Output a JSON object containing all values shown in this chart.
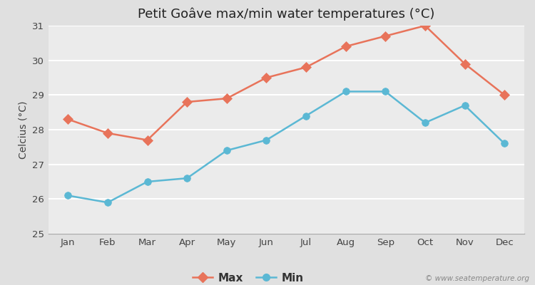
{
  "title": "Petit Goâve max/min water temperatures (°C)",
  "ylabel": "Celcius (°C)",
  "months": [
    "Jan",
    "Feb",
    "Mar",
    "Apr",
    "May",
    "Jun",
    "Jul",
    "Aug",
    "Sep",
    "Oct",
    "Nov",
    "Dec"
  ],
  "max_values": [
    28.3,
    27.9,
    27.7,
    28.8,
    28.9,
    29.5,
    29.8,
    30.4,
    30.7,
    31.0,
    29.9,
    29.0
  ],
  "min_values": [
    26.1,
    25.9,
    26.5,
    26.6,
    27.4,
    27.7,
    28.4,
    29.1,
    29.1,
    28.2,
    28.7,
    27.6
  ],
  "max_color": "#E8735A",
  "min_color": "#5BB8D4",
  "bg_color": "#E0E0E0",
  "plot_bg_color": "#EBEBEB",
  "grid_color": "#FFFFFF",
  "ylim": [
    25,
    31
  ],
  "yticks": [
    25,
    26,
    27,
    28,
    29,
    30,
    31
  ],
  "watermark": "© www.seatemperature.org",
  "legend_labels": [
    "Max",
    "Min"
  ],
  "marker_size_max": 7,
  "marker_size_min": 7,
  "line_width": 1.8,
  "title_fontsize": 13,
  "label_fontsize": 10,
  "tick_fontsize": 9.5
}
